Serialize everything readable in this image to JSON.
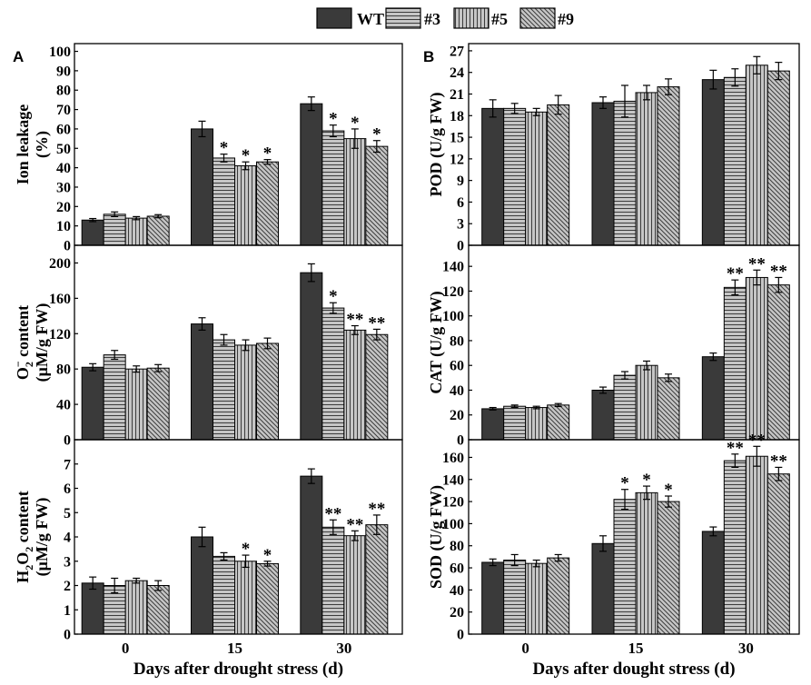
{
  "figure": {
    "legend": [
      "WT",
      "#3",
      "#5",
      "#9"
    ],
    "colors": {
      "wt": "#3a3a3a",
      "hatch_bg": "#c6c6c6",
      "hatch_line": "#3c3c3c",
      "axis": "#000000"
    }
  },
  "chart_data": [
    {
      "type": "bar",
      "panel_label": "A",
      "ylabel": [
        [
          {
            "t": "Ion leakage"
          }
        ],
        [
          {
            "t": "(%)"
          }
        ]
      ],
      "ylim": [
        0,
        104
      ],
      "yticks": [
        0,
        10,
        20,
        30,
        40,
        50,
        60,
        70,
        80,
        90,
        100
      ],
      "series": [
        {
          "values": [
            13,
            60,
            73
          ],
          "err": [
            0.8,
            4,
            3.5
          ],
          "sig": [
            null,
            null,
            null
          ]
        },
        {
          "values": [
            16,
            45,
            59
          ],
          "err": [
            1.2,
            2,
            3
          ],
          "sig": [
            null,
            "*",
            "*"
          ]
        },
        {
          "values": [
            14,
            41,
            55
          ],
          "err": [
            0.8,
            2,
            5
          ],
          "sig": [
            null,
            "*",
            "*"
          ]
        },
        {
          "values": [
            15,
            43,
            51
          ],
          "err": [
            0.8,
            1.2,
            3
          ],
          "sig": [
            null,
            "*",
            "*"
          ]
        }
      ]
    },
    {
      "type": "bar",
      "ylabel": [
        [
          {
            "t": "O"
          },
          {
            "t": "2",
            "sub": true
          },
          {
            "t": "−",
            "sup": true
          },
          {
            "t": " content"
          }
        ],
        [
          {
            "t": "(μM/g FW)"
          }
        ]
      ],
      "ylim": [
        0,
        220
      ],
      "yticks": [
        0,
        40,
        80,
        120,
        160,
        200
      ],
      "series": [
        {
          "values": [
            82,
            131,
            189
          ],
          "err": [
            4,
            7,
            10
          ],
          "sig": [
            null,
            null,
            null
          ]
        },
        {
          "values": [
            96,
            113,
            149
          ],
          "err": [
            5,
            6,
            6
          ],
          "sig": [
            null,
            null,
            "*"
          ]
        },
        {
          "values": [
            80,
            107,
            124
          ],
          "err": [
            3.5,
            6,
            5
          ],
          "sig": [
            null,
            null,
            "**"
          ]
        },
        {
          "values": [
            81,
            109,
            119
          ],
          "err": [
            4,
            6,
            6
          ],
          "sig": [
            null,
            null,
            "**"
          ]
        }
      ]
    },
    {
      "type": "bar",
      "ylabel": [
        [
          {
            "t": "H"
          },
          {
            "t": "2",
            "sub": true
          },
          {
            "t": "O"
          },
          {
            "t": "2",
            "sub": true
          },
          {
            "t": " content"
          }
        ],
        [
          {
            "t": "(μM/g FW)"
          }
        ]
      ],
      "ylim": [
        0,
        8
      ],
      "yticks": [
        0,
        1,
        2,
        3,
        4,
        5,
        6,
        7
      ],
      "categories": [
        "0",
        "15",
        "30"
      ],
      "xlabel": "Days after drought stress (d)",
      "series": [
        {
          "values": [
            2.1,
            4.0,
            6.5
          ],
          "err": [
            0.25,
            0.4,
            0.3
          ],
          "sig": [
            null,
            null,
            null
          ]
        },
        {
          "values": [
            2.0,
            3.2,
            4.4
          ],
          "err": [
            0.3,
            0.15,
            0.3
          ],
          "sig": [
            null,
            null,
            "**"
          ]
        },
        {
          "values": [
            2.2,
            3.0,
            4.05
          ],
          "err": [
            0.1,
            0.25,
            0.2
          ],
          "sig": [
            null,
            "*",
            "**"
          ]
        },
        {
          "values": [
            2.0,
            2.9,
            4.5
          ],
          "err": [
            0.2,
            0.1,
            0.4
          ],
          "sig": [
            null,
            "*",
            "**"
          ]
        }
      ]
    },
    {
      "type": "bar",
      "panel_label": "B",
      "ylabel": [
        [
          {
            "t": "POD (U/g FW)"
          }
        ]
      ],
      "ylim": [
        0,
        28
      ],
      "yticks": [
        0,
        3,
        6,
        9,
        12,
        15,
        18,
        21,
        24,
        27
      ],
      "series": [
        {
          "values": [
            19,
            19.8,
            23
          ],
          "err": [
            1.2,
            0.8,
            1.3
          ],
          "sig": [
            null,
            null,
            null
          ]
        },
        {
          "values": [
            19,
            20,
            23.3
          ],
          "err": [
            0.7,
            2.2,
            1.2
          ],
          "sig": [
            null,
            null,
            null
          ]
        },
        {
          "values": [
            18.5,
            21.2,
            25
          ],
          "err": [
            0.5,
            1.0,
            1.2
          ],
          "sig": [
            null,
            null,
            null
          ]
        },
        {
          "values": [
            19.5,
            22,
            24.2
          ],
          "err": [
            1.3,
            1.1,
            1.2
          ],
          "sig": [
            null,
            null,
            null
          ]
        }
      ]
    },
    {
      "type": "bar",
      "ylabel": [
        [
          {
            "t": "CAT (U/g FW)"
          }
        ]
      ],
      "ylim": [
        0,
        157
      ],
      "yticks": [
        0,
        20,
        40,
        60,
        80,
        100,
        120,
        140
      ],
      "series": [
        {
          "values": [
            25,
            40,
            67
          ],
          "err": [
            1,
            2.5,
            3
          ],
          "sig": [
            null,
            null,
            null
          ]
        },
        {
          "values": [
            27,
            52,
            123
          ],
          "err": [
            1,
            3,
            6
          ],
          "sig": [
            null,
            null,
            "**"
          ]
        },
        {
          "values": [
            26,
            60,
            131
          ],
          "err": [
            1,
            3.5,
            6
          ],
          "sig": [
            null,
            null,
            "**"
          ]
        },
        {
          "values": [
            28,
            50,
            125
          ],
          "err": [
            1.2,
            3,
            6
          ],
          "sig": [
            null,
            null,
            "**"
          ]
        }
      ]
    },
    {
      "type": "bar",
      "ylabel": [
        [
          {
            "t": "SOD (U/g FW)"
          }
        ]
      ],
      "ylim": [
        0,
        176
      ],
      "yticks": [
        0,
        20,
        40,
        60,
        80,
        100,
        120,
        140,
        160
      ],
      "categories": [
        "0",
        "15",
        "30"
      ],
      "xlabel": "Days after dought stress (d)",
      "series": [
        {
          "values": [
            65,
            82,
            93
          ],
          "err": [
            3,
            7,
            4
          ],
          "sig": [
            null,
            null,
            null
          ]
        },
        {
          "values": [
            67,
            122,
            157
          ],
          "err": [
            5,
            9,
            6
          ],
          "sig": [
            null,
            "*",
            "**"
          ]
        },
        {
          "values": [
            64,
            128,
            161
          ],
          "err": [
            3,
            6,
            9
          ],
          "sig": [
            null,
            "*",
            "**"
          ]
        },
        {
          "values": [
            69,
            120,
            145
          ],
          "err": [
            3,
            5,
            6
          ],
          "sig": [
            null,
            "*",
            "**"
          ]
        }
      ]
    }
  ]
}
